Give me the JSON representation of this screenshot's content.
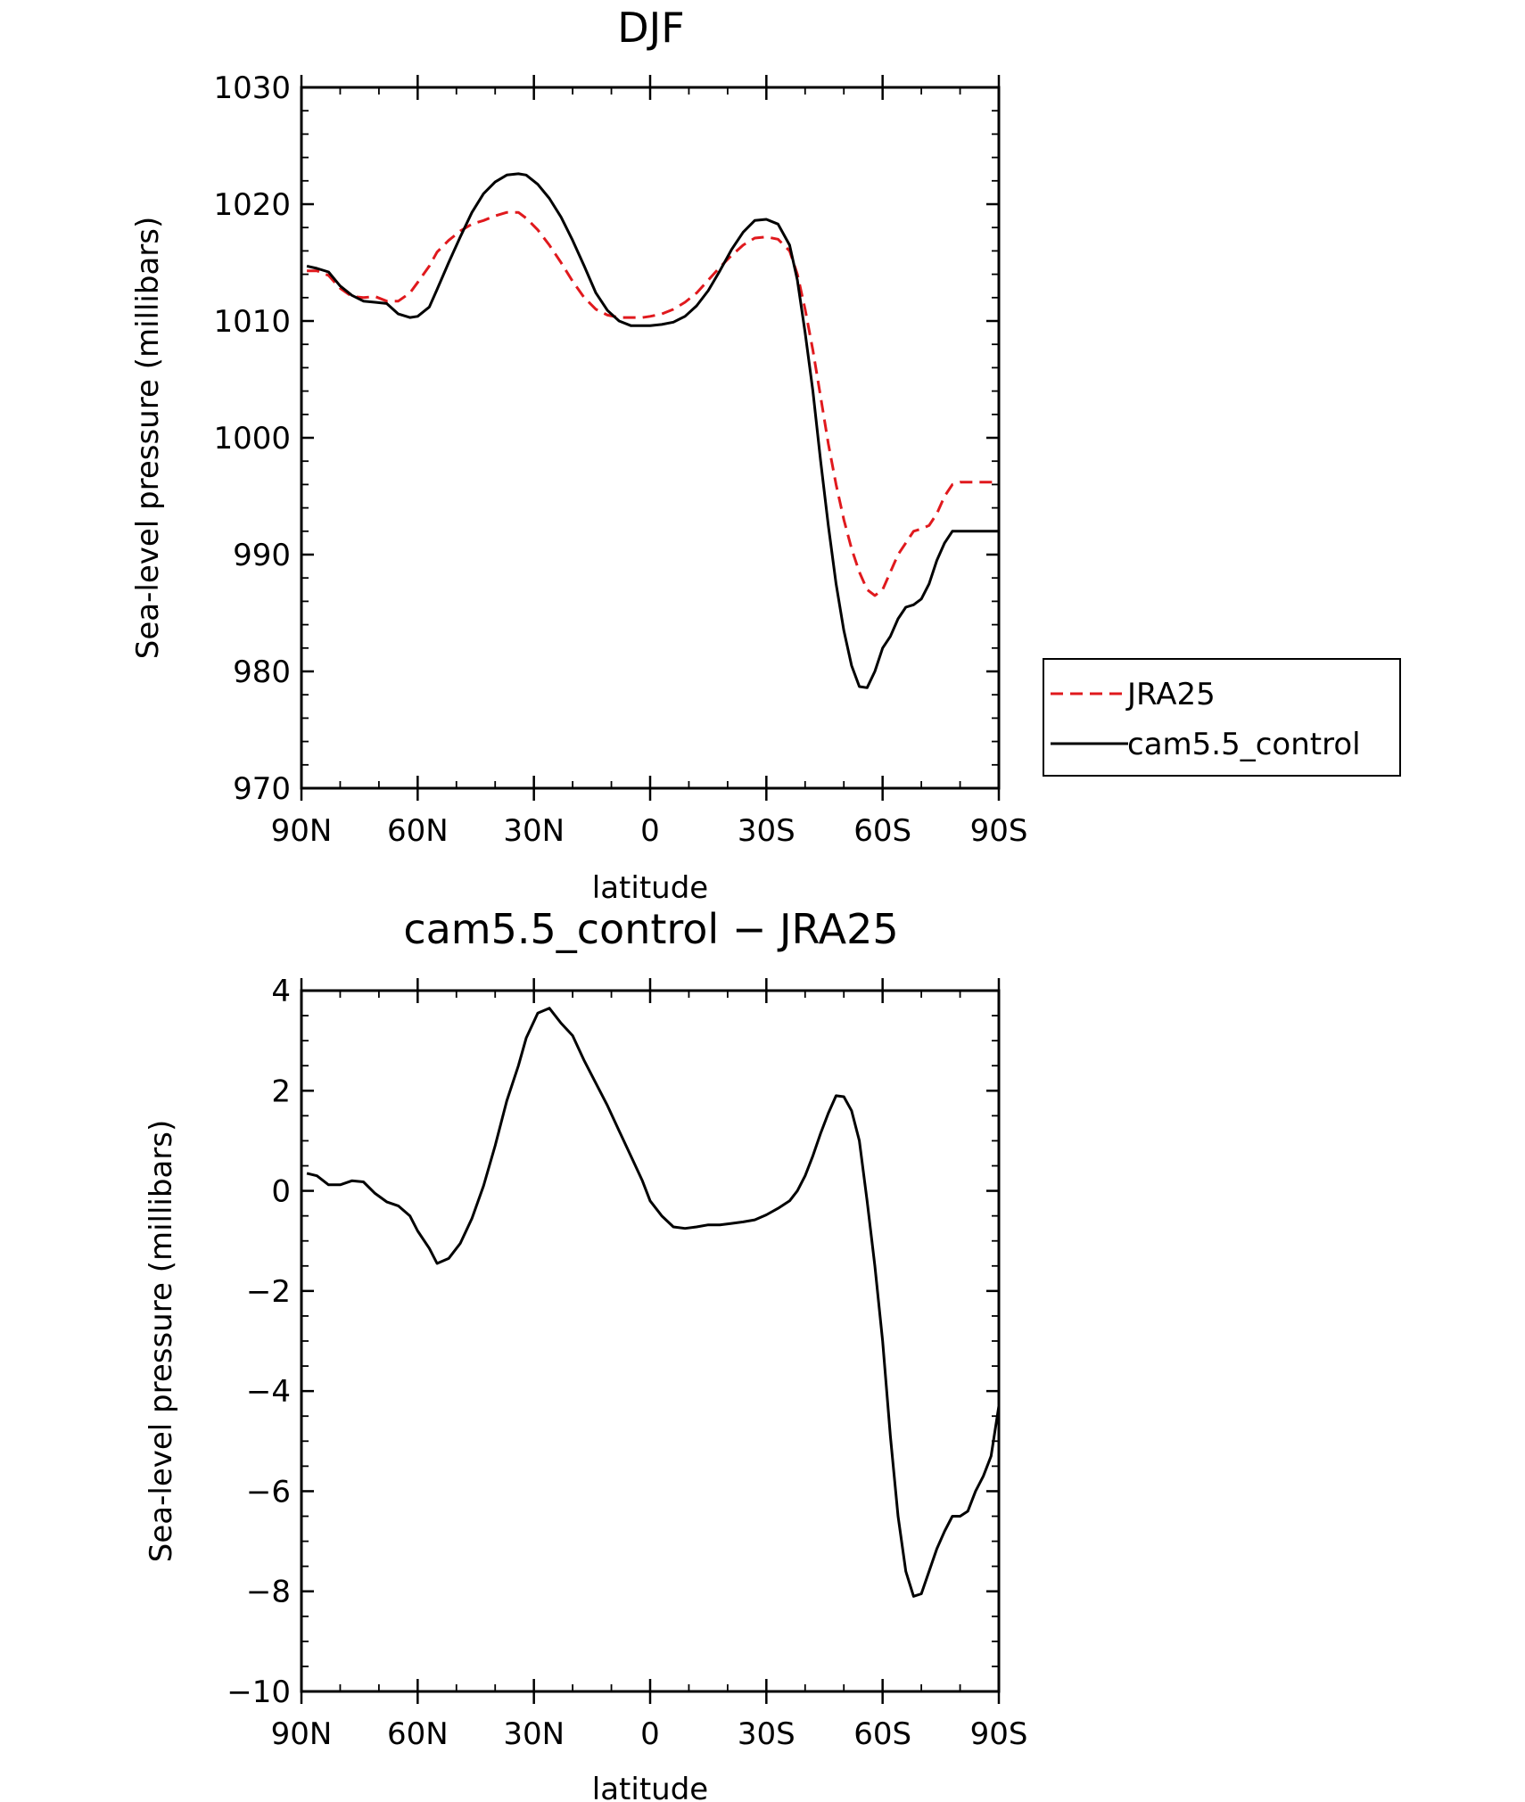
{
  "chart_data": [
    {
      "type": "line",
      "title": "DJF",
      "xlabel": "latitude",
      "ylabel": "Sea-level pressure (millibars)",
      "xlim": [
        90,
        -90
      ],
      "ylim": [
        970,
        1030
      ],
      "x_ticks": [
        90,
        60,
        30,
        0,
        -30,
        -60,
        -90
      ],
      "x_tick_labels": [
        "90N",
        "60N",
        "30N",
        "0",
        "30S",
        "60S",
        "90S"
      ],
      "y_ticks": [
        970,
        980,
        990,
        1000,
        1010,
        1020,
        1030
      ],
      "y_tick_labels": [
        "970",
        "980",
        "990",
        "1000",
        "1010",
        "1020",
        "1030"
      ],
      "grid": false,
      "legend_position": "right",
      "x": [
        88.6,
        86,
        83,
        80,
        77,
        74,
        71,
        68,
        65,
        62,
        60,
        57,
        55,
        52,
        49,
        46,
        43,
        40,
        37,
        34,
        32,
        29,
        26,
        23,
        20,
        17,
        14,
        11,
        8,
        5,
        2,
        0,
        -3,
        -6,
        -9,
        -12,
        -15,
        -18,
        -21,
        -24,
        -27,
        -30,
        -33,
        -36,
        -38,
        -40,
        -42,
        -44,
        -46,
        -48,
        -50,
        -52,
        -54,
        -56,
        -58,
        -60,
        -62,
        -64,
        -66,
        -68,
        -70,
        -72,
        -74,
        -76,
        -78,
        -80,
        -82,
        -84,
        -86,
        -88,
        -90
      ],
      "series": [
        {
          "name": "JRA25",
          "color": "#e0191d",
          "dash": "dashed",
          "values": [
            1014.3,
            1014.3,
            1013.9,
            1012.8,
            1012.1,
            1012.0,
            1012.1,
            1011.7,
            1011.7,
            1012.4,
            1013.3,
            1014.7,
            1015.9,
            1016.9,
            1017.7,
            1018.3,
            1018.6,
            1019.0,
            1019.3,
            1019.3,
            1018.8,
            1017.8,
            1016.5,
            1015.0,
            1013.4,
            1012.0,
            1011.0,
            1010.5,
            1010.3,
            1010.3,
            1010.3,
            1010.4,
            1010.6,
            1011.0,
            1011.6,
            1012.4,
            1013.5,
            1014.6,
            1015.6,
            1016.5,
            1017.1,
            1017.2,
            1017.0,
            1016.0,
            1014.0,
            1011.0,
            1007.5,
            1003.5,
            999.5,
            996.0,
            993.0,
            990.5,
            988.5,
            987.0,
            986.5,
            987.0,
            988.5,
            990.0,
            991.0,
            992.0,
            992.2,
            992.5,
            993.5,
            995.0,
            996.0,
            996.2,
            996.2,
            996.2,
            996.2,
            996.2,
            996.2
          ]
        },
        {
          "name": "cam5.5_control",
          "color": "#000000",
          "dash": "solid",
          "values": [
            1014.7,
            1014.5,
            1014.2,
            1013.0,
            1012.2,
            1011.7,
            1011.6,
            1011.5,
            1010.6,
            1010.3,
            1010.4,
            1011.2,
            1012.7,
            1015.0,
            1017.2,
            1019.3,
            1020.9,
            1021.9,
            1022.5,
            1022.6,
            1022.5,
            1021.7,
            1020.5,
            1018.9,
            1016.9,
            1014.7,
            1012.4,
            1010.9,
            1010.0,
            1009.6,
            1009.6,
            1009.6,
            1009.7,
            1009.9,
            1010.4,
            1011.3,
            1012.6,
            1014.3,
            1016.1,
            1017.6,
            1018.6,
            1018.7,
            1018.3,
            1016.5,
            1013.5,
            1009.0,
            1004.0,
            998.0,
            992.5,
            987.5,
            983.5,
            980.5,
            978.7,
            978.6,
            980.0,
            982.0,
            983.0,
            984.5,
            985.5,
            985.7,
            986.2,
            987.5,
            989.5,
            991.0,
            992.0,
            992.0,
            992.0,
            992.0,
            992.0,
            992.0,
            992.0
          ]
        }
      ]
    },
    {
      "type": "line",
      "title": "cam5.5_control − JRA25",
      "xlabel": "latitude",
      "ylabel": "Sea-level pressure (millibars)",
      "xlim": [
        90,
        -90
      ],
      "ylim": [
        -10,
        4
      ],
      "x_ticks": [
        90,
        60,
        30,
        0,
        -30,
        -60,
        -90
      ],
      "x_tick_labels": [
        "90N",
        "60N",
        "30N",
        "0",
        "30S",
        "60S",
        "90S"
      ],
      "y_ticks": [
        -10,
        -8,
        -6,
        -4,
        -2,
        0,
        2,
        4
      ],
      "y_tick_labels": [
        "−10",
        "−8",
        "−6",
        "−4",
        "−2",
        "0",
        "2",
        "4"
      ],
      "grid": false,
      "x": [
        88.6,
        86,
        83,
        80,
        77,
        74,
        71,
        68,
        65,
        62,
        60,
        57,
        55,
        52,
        49,
        46,
        43,
        40,
        37,
        34,
        32,
        29,
        26,
        23,
        20,
        17,
        14,
        11,
        8,
        5,
        2,
        0,
        -3,
        -6,
        -9,
        -12,
        -15,
        -18,
        -21,
        -24,
        -27,
        -30,
        -33,
        -36,
        -38,
        -40,
        -42,
        -44,
        -46,
        -48,
        -50,
        -52,
        -54,
        -56,
        -58,
        -60,
        -62,
        -64,
        -66,
        -68,
        -70,
        -72,
        -74,
        -76,
        -78,
        -80,
        -82,
        -84,
        -86,
        -88,
        -90
      ],
      "series": [
        {
          "color": "#000000",
          "dash": "solid",
          "values": [
            0.35,
            0.3,
            0.12,
            0.12,
            0.2,
            0.18,
            -0.05,
            -0.22,
            -0.3,
            -0.5,
            -0.8,
            -1.15,
            -1.45,
            -1.35,
            -1.05,
            -0.55,
            0.1,
            0.9,
            1.8,
            2.5,
            3.05,
            3.55,
            3.65,
            3.35,
            3.1,
            2.6,
            2.15,
            1.7,
            1.2,
            0.7,
            0.2,
            -0.2,
            -0.5,
            -0.72,
            -0.75,
            -0.72,
            -0.68,
            -0.68,
            -0.65,
            -0.62,
            -0.58,
            -0.48,
            -0.35,
            -0.2,
            0.0,
            0.3,
            0.7,
            1.15,
            1.55,
            1.9,
            1.88,
            1.6,
            1.0,
            -0.2,
            -1.5,
            -3.0,
            -4.9,
            -6.5,
            -7.6,
            -8.1,
            -8.05,
            -7.6,
            -7.15,
            -6.8,
            -6.5,
            -6.5,
            -6.4,
            -6.0,
            -5.7,
            -5.3,
            -4.3
          ]
        }
      ]
    }
  ]
}
